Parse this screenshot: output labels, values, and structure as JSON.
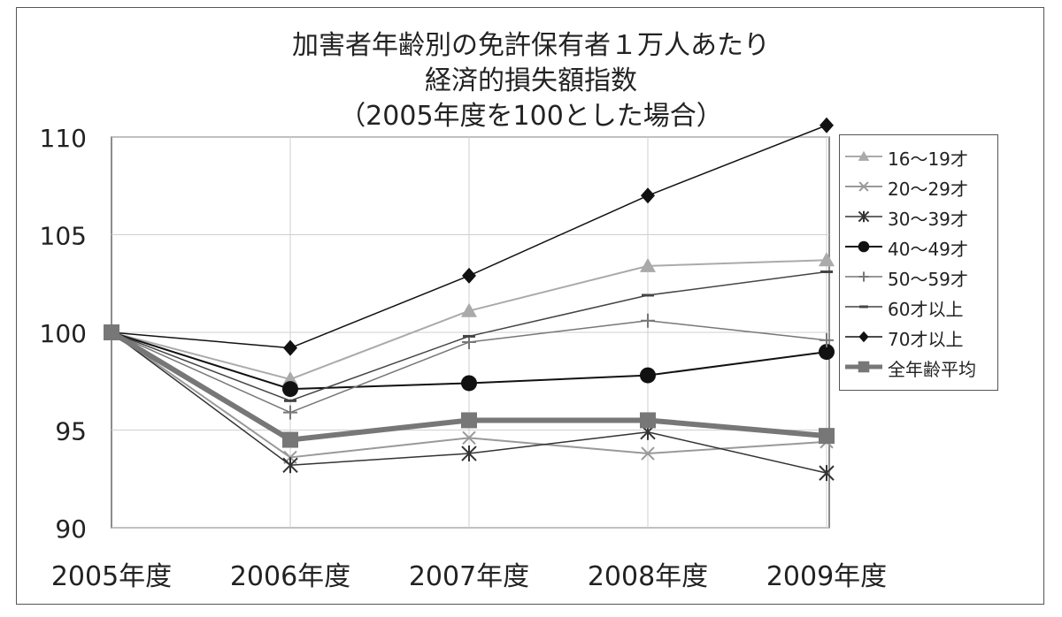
{
  "chart_data": {
    "type": "line",
    "title_lines": [
      "加害者年齢別の免許保有者１万人あたり",
      "経済的損失額指数",
      "（2005年度を100とした場合）"
    ],
    "categories": [
      "2005年度",
      "2006年度",
      "2007年度",
      "2008年度",
      "2009年度"
    ],
    "ylim": [
      90,
      110
    ],
    "yticks": [
      "90",
      "95",
      "100",
      "105",
      "110"
    ],
    "ytick_values": [
      90,
      95,
      100,
      105,
      110
    ],
    "grid": true,
    "legend_position": "right",
    "series": [
      {
        "name": "16～19才",
        "values": [
          100,
          97.6,
          101.1,
          103.4,
          103.7
        ],
        "color": "#aaaaaa",
        "marker": "triangle",
        "stroke_width": 2
      },
      {
        "name": "20～29才",
        "values": [
          100,
          93.6,
          94.6,
          93.8,
          94.4
        ],
        "color": "#999999",
        "marker": "x",
        "stroke_width": 2
      },
      {
        "name": "30～39才",
        "values": [
          100,
          93.2,
          93.8,
          94.9,
          92.8
        ],
        "color": "#333333",
        "marker": "asterisk",
        "stroke_width": 1.5
      },
      {
        "name": "40～49才",
        "values": [
          100,
          97.1,
          97.4,
          97.8,
          99.0
        ],
        "color": "#111111",
        "marker": "circle",
        "stroke_width": 2
      },
      {
        "name": "50～59才",
        "values": [
          100,
          95.9,
          99.5,
          100.6,
          99.6
        ],
        "color": "#777777",
        "marker": "plus",
        "stroke_width": 1.5
      },
      {
        "name": "60才以上",
        "values": [
          100,
          96.5,
          99.8,
          101.9,
          103.1
        ],
        "color": "#444444",
        "marker": "dash",
        "stroke_width": 1.5
      },
      {
        "name": "70才以上",
        "values": [
          100,
          99.2,
          102.9,
          107.0,
          110.6
        ],
        "color": "#111111",
        "marker": "diamond",
        "stroke_width": 1.5
      },
      {
        "name": "全年齢平均",
        "values": [
          100,
          94.5,
          95.5,
          95.5,
          94.7
        ],
        "color": "#777777",
        "marker": "square",
        "stroke_width": 6
      }
    ]
  }
}
